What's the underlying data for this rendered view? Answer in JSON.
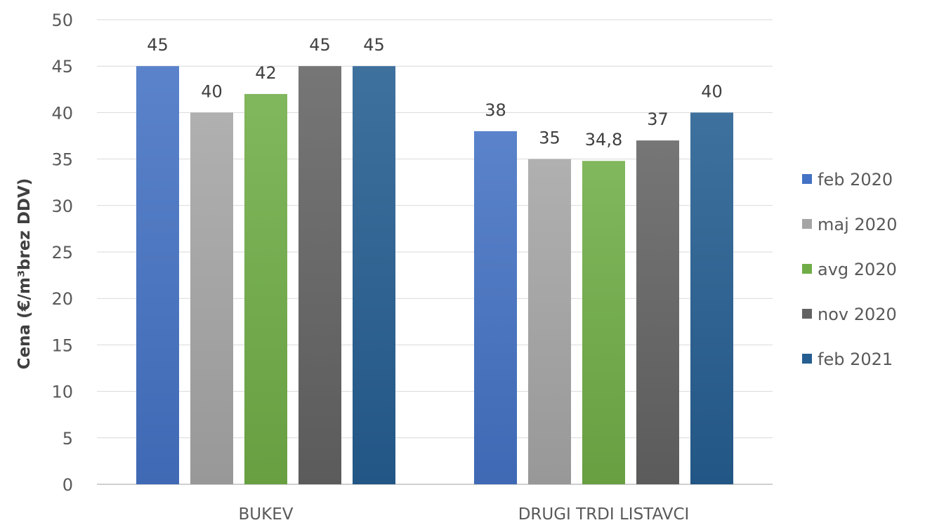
{
  "chart_data": {
    "type": "bar",
    "title": "",
    "ylabel": "Cena (€/m³brez DDV)",
    "xlabel": "",
    "ylim": [
      0,
      50
    ],
    "yticks": [
      0,
      5,
      10,
      15,
      20,
      25,
      30,
      35,
      40,
      45,
      50
    ],
    "grid": true,
    "legend": "right",
    "categories": [
      "BUKEV",
      "DRUGI TRDI LISTAVCI"
    ],
    "series": [
      {
        "name": "feb 2020",
        "color": "#4472C4",
        "values": [
          45,
          38
        ],
        "labels": [
          "45",
          "38"
        ]
      },
      {
        "name": "maj 2020",
        "color": "#A5A5A5",
        "values": [
          40,
          35
        ],
        "labels": [
          "40",
          "35"
        ]
      },
      {
        "name": "avg 2020",
        "color": "#70AD47",
        "values": [
          42,
          34.8
        ],
        "labels": [
          "42",
          "34,8"
        ]
      },
      {
        "name": "nov 2020",
        "color": "#636363",
        "values": [
          45,
          37
        ],
        "labels": [
          "45",
          "37"
        ]
      },
      {
        "name": "feb 2021",
        "color": "#255E91",
        "values": [
          45,
          40
        ],
        "labels": [
          "45",
          "40"
        ]
      }
    ]
  }
}
